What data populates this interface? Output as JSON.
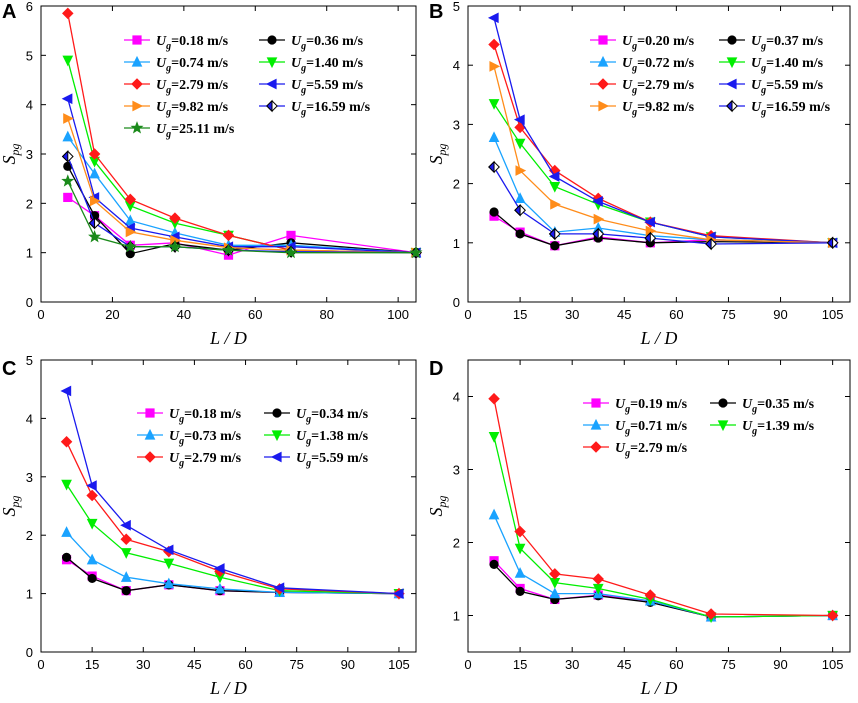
{
  "chart_data": [
    {
      "panel": "A",
      "type": "line",
      "xlabel": "L / D",
      "ylabel_main": "S",
      "ylabel_sub": "pg",
      "xlim": [
        0,
        105
      ],
      "ylim": [
        0,
        6
      ],
      "xticks": [
        "0",
        "20",
        "40",
        "60",
        "80",
        "100"
      ],
      "yticks": [
        "0",
        "1",
        "2",
        "3",
        "4",
        "5",
        "6"
      ],
      "x": [
        7.5,
        15,
        25,
        37.5,
        52.5,
        70,
        105
      ],
      "series": [
        {
          "prefix": "U",
          "sub": "g",
          "value": "=0.18 m/s",
          "color": "#ff00ff",
          "marker": "square",
          "values": [
            2.12,
            1.75,
            1.15,
            1.2,
            0.95,
            1.35,
            1.0
          ]
        },
        {
          "prefix": "U",
          "sub": "g",
          "value": "=0.36 m/s",
          "color": "#000000",
          "marker": "circle",
          "values": [
            2.75,
            1.75,
            0.98,
            1.18,
            1.05,
            1.2,
            1.0
          ]
        },
        {
          "prefix": "U",
          "sub": "g",
          "value": "=0.74 m/s",
          "color": "#1aa3ff",
          "marker": "triangle-up",
          "values": [
            3.35,
            2.6,
            1.65,
            1.4,
            1.15,
            1.15,
            1.0
          ]
        },
        {
          "prefix": "U",
          "sub": "g",
          "value": "=1.40 m/s",
          "color": "#00ee00",
          "marker": "triangle-down",
          "values": [
            4.9,
            2.85,
            1.95,
            1.6,
            1.35,
            1.05,
            1.0
          ]
        },
        {
          "prefix": "U",
          "sub": "g",
          "value": "=2.79 m/s",
          "color": "#ff1a1a",
          "marker": "diamond",
          "values": [
            5.85,
            3.0,
            2.08,
            1.7,
            1.35,
            1.05,
            1.0
          ]
        },
        {
          "prefix": "U",
          "sub": "g",
          "value": "=5.59 m/s",
          "color": "#1a1aee",
          "marker": "triangle-left",
          "values": [
            4.12,
            2.12,
            1.5,
            1.32,
            1.12,
            1.12,
            1.0
          ]
        },
        {
          "prefix": "U",
          "sub": "g",
          "value": "=9.82 m/s",
          "color": "#ff8c1a",
          "marker": "triangle-right",
          "values": [
            3.72,
            2.05,
            1.42,
            1.25,
            1.1,
            1.05,
            1.0
          ]
        },
        {
          "prefix": "U",
          "sub": "g",
          "value": "=16.59 m/s",
          "color": "#1a1aee",
          "marker": "half-diamond",
          "values": [
            2.95,
            1.6,
            1.12,
            1.12,
            1.05,
            1.02,
            1.0
          ]
        },
        {
          "prefix": "U",
          "sub": "g",
          "value": "=25.11 m/s",
          "color": "#1a8a1a",
          "marker": "star",
          "values": [
            2.45,
            1.32,
            1.12,
            1.12,
            1.05,
            1.0,
            1.0
          ]
        }
      ]
    },
    {
      "panel": "B",
      "type": "line",
      "xlabel": "L / D",
      "ylabel_main": "S",
      "ylabel_sub": "pg",
      "xlim": [
        0,
        110
      ],
      "ylim": [
        0,
        5
      ],
      "xticks": [
        "0",
        "15",
        "30",
        "45",
        "60",
        "75",
        "90",
        "105"
      ],
      "yticks": [
        "0",
        "1",
        "2",
        "3",
        "4",
        "5"
      ],
      "x": [
        7.5,
        15,
        25,
        37.5,
        52.5,
        70,
        105
      ],
      "series": [
        {
          "prefix": "U",
          "sub": "g",
          "value": "=0.20 m/s",
          "color": "#ff00ff",
          "marker": "square",
          "values": [
            1.45,
            1.18,
            0.95,
            1.1,
            1.0,
            1.05,
            1.0
          ]
        },
        {
          "prefix": "U",
          "sub": "g",
          "value": "=0.37 m/s",
          "color": "#000000",
          "marker": "circle",
          "values": [
            1.52,
            1.15,
            0.95,
            1.08,
            1.0,
            1.02,
            1.0
          ]
        },
        {
          "prefix": "U",
          "sub": "g",
          "value": "=0.72 m/s",
          "color": "#1aa3ff",
          "marker": "triangle-up",
          "values": [
            2.78,
            1.75,
            1.18,
            1.25,
            1.12,
            1.05,
            1.0
          ]
        },
        {
          "prefix": "U",
          "sub": "g",
          "value": "=1.40 m/s",
          "color": "#00ee00",
          "marker": "triangle-down",
          "values": [
            3.35,
            2.68,
            1.95,
            1.65,
            1.35,
            1.1,
            1.0
          ]
        },
        {
          "prefix": "U",
          "sub": "g",
          "value": "=2.79 m/s",
          "color": "#ff1a1a",
          "marker": "diamond",
          "values": [
            4.35,
            2.95,
            2.22,
            1.75,
            1.35,
            1.12,
            1.0
          ]
        },
        {
          "prefix": "U",
          "sub": "g",
          "value": "=5.59 m/s",
          "color": "#1a1aee",
          "marker": "triangle-left",
          "values": [
            4.8,
            3.08,
            2.12,
            1.7,
            1.35,
            1.1,
            1.0
          ]
        },
        {
          "prefix": "U",
          "sub": "g",
          "value": "=9.82 m/s",
          "color": "#ff8c1a",
          "marker": "triangle-right",
          "values": [
            3.98,
            2.22,
            1.65,
            1.4,
            1.2,
            1.05,
            1.0
          ]
        },
        {
          "prefix": "U",
          "sub": "g",
          "value": "=16.59 m/s",
          "color": "#1a1aee",
          "marker": "half-diamond",
          "values": [
            2.28,
            1.55,
            1.15,
            1.15,
            1.08,
            0.98,
            1.0
          ]
        }
      ]
    },
    {
      "panel": "C",
      "type": "line",
      "xlabel": "L / D",
      "ylabel_main": "S",
      "ylabel_sub": "pg",
      "xlim": [
        0,
        110
      ],
      "ylim": [
        0,
        5
      ],
      "xticks": [
        "0",
        "15",
        "30",
        "45",
        "60",
        "75",
        "90",
        "105"
      ],
      "yticks": [
        "0",
        "1",
        "2",
        "3",
        "4",
        "5"
      ],
      "x": [
        7.5,
        15,
        25,
        37.5,
        52.5,
        70,
        105
      ],
      "series": [
        {
          "prefix": "U",
          "sub": "g",
          "value": "=0.18 m/s",
          "color": "#ff00ff",
          "marker": "square",
          "values": [
            1.58,
            1.3,
            1.05,
            1.15,
            1.05,
            1.02,
            1.0
          ]
        },
        {
          "prefix": "U",
          "sub": "g",
          "value": "=0.34 m/s",
          "color": "#000000",
          "marker": "circle",
          "values": [
            1.62,
            1.26,
            1.05,
            1.15,
            1.05,
            1.02,
            1.0
          ]
        },
        {
          "prefix": "U",
          "sub": "g",
          "value": "=0.73 m/s",
          "color": "#1aa3ff",
          "marker": "triangle-up",
          "values": [
            2.05,
            1.58,
            1.28,
            1.17,
            1.08,
            1.02,
            1.0
          ]
        },
        {
          "prefix": "U",
          "sub": "g",
          "value": "=1.38 m/s",
          "color": "#00ee00",
          "marker": "triangle-down",
          "values": [
            2.87,
            2.2,
            1.7,
            1.52,
            1.28,
            1.05,
            1.0
          ]
        },
        {
          "prefix": "U",
          "sub": "g",
          "value": "=2.79 m/s",
          "color": "#ff1a1a",
          "marker": "diamond",
          "values": [
            3.6,
            2.68,
            1.93,
            1.72,
            1.38,
            1.08,
            1.0
          ]
        },
        {
          "prefix": "U",
          "sub": "g",
          "value": "=5.59 m/s",
          "color": "#1a1aee",
          "marker": "triangle-left",
          "values": [
            4.47,
            2.85,
            2.17,
            1.75,
            1.43,
            1.1,
            1.0
          ]
        }
      ]
    },
    {
      "panel": "D",
      "type": "line",
      "xlabel": "L / D",
      "ylabel_main": "S",
      "ylabel_sub": "pg",
      "xlim": [
        0,
        110
      ],
      "ylim": [
        0.5,
        4.5
      ],
      "xticks": [
        "0",
        "15",
        "30",
        "45",
        "60",
        "75",
        "90",
        "105"
      ],
      "yticks": [
        "1",
        "2",
        "3",
        "4"
      ],
      "x": [
        7.5,
        15,
        25,
        37.5,
        52.5,
        70,
        105
      ],
      "series": [
        {
          "prefix": "U",
          "sub": "g",
          "value": "=0.19 m/s",
          "color": "#ff00ff",
          "marker": "square",
          "values": [
            1.75,
            1.37,
            1.22,
            1.28,
            1.2,
            0.98,
            1.0
          ]
        },
        {
          "prefix": "U",
          "sub": "g",
          "value": "=0.35 m/s",
          "color": "#000000",
          "marker": "circle",
          "values": [
            1.7,
            1.33,
            1.22,
            1.27,
            1.18,
            0.98,
            1.0
          ]
        },
        {
          "prefix": "U",
          "sub": "g",
          "value": "=0.71 m/s",
          "color": "#1aa3ff",
          "marker": "triangle-up",
          "values": [
            2.38,
            1.58,
            1.3,
            1.3,
            1.2,
            0.98,
            1.0
          ]
        },
        {
          "prefix": "U",
          "sub": "g",
          "value": "=1.39 m/s",
          "color": "#00ee00",
          "marker": "triangle-down",
          "values": [
            3.45,
            1.92,
            1.45,
            1.37,
            1.22,
            0.98,
            1.0
          ]
        },
        {
          "prefix": "U",
          "sub": "g",
          "value": "=2.79 m/s",
          "color": "#ff1a1a",
          "marker": "diamond",
          "values": [
            3.97,
            2.15,
            1.57,
            1.5,
            1.28,
            1.02,
            1.0
          ]
        }
      ]
    }
  ]
}
